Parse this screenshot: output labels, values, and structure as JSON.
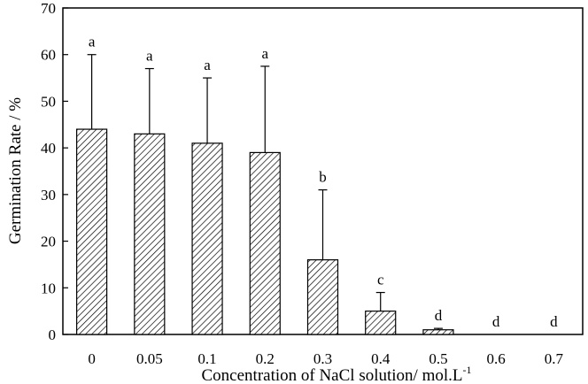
{
  "chart_data": {
    "type": "bar",
    "categories": [
      "0",
      "0.05",
      "0.1",
      "0.2",
      "0.3",
      "0.4",
      "0.5",
      "0.6",
      "0.7"
    ],
    "values": [
      44,
      43,
      41,
      39,
      16,
      5,
      1,
      0,
      0
    ],
    "error_upper": [
      60,
      57,
      55,
      57.5,
      31,
      9,
      1.3,
      0,
      0
    ],
    "significance_labels": [
      "a",
      "a",
      "a",
      "a",
      "b",
      "c",
      "d",
      "d",
      "d"
    ],
    "title": "",
    "xlabel": "Concentration of  NaCl solution/ mol.L",
    "xlabel_superscript": "-1",
    "ylabel": "Germination Rate / %",
    "ylim": [
      0,
      70
    ],
    "yticks": [
      "0",
      "10",
      "20",
      "30",
      "40",
      "50",
      "60",
      "70"
    ],
    "grid": false,
    "bar_fill": "diagonal-hatch",
    "colors": {
      "bar_stroke": "#000000",
      "hatch": "#000000",
      "background": "#ffffff"
    }
  }
}
